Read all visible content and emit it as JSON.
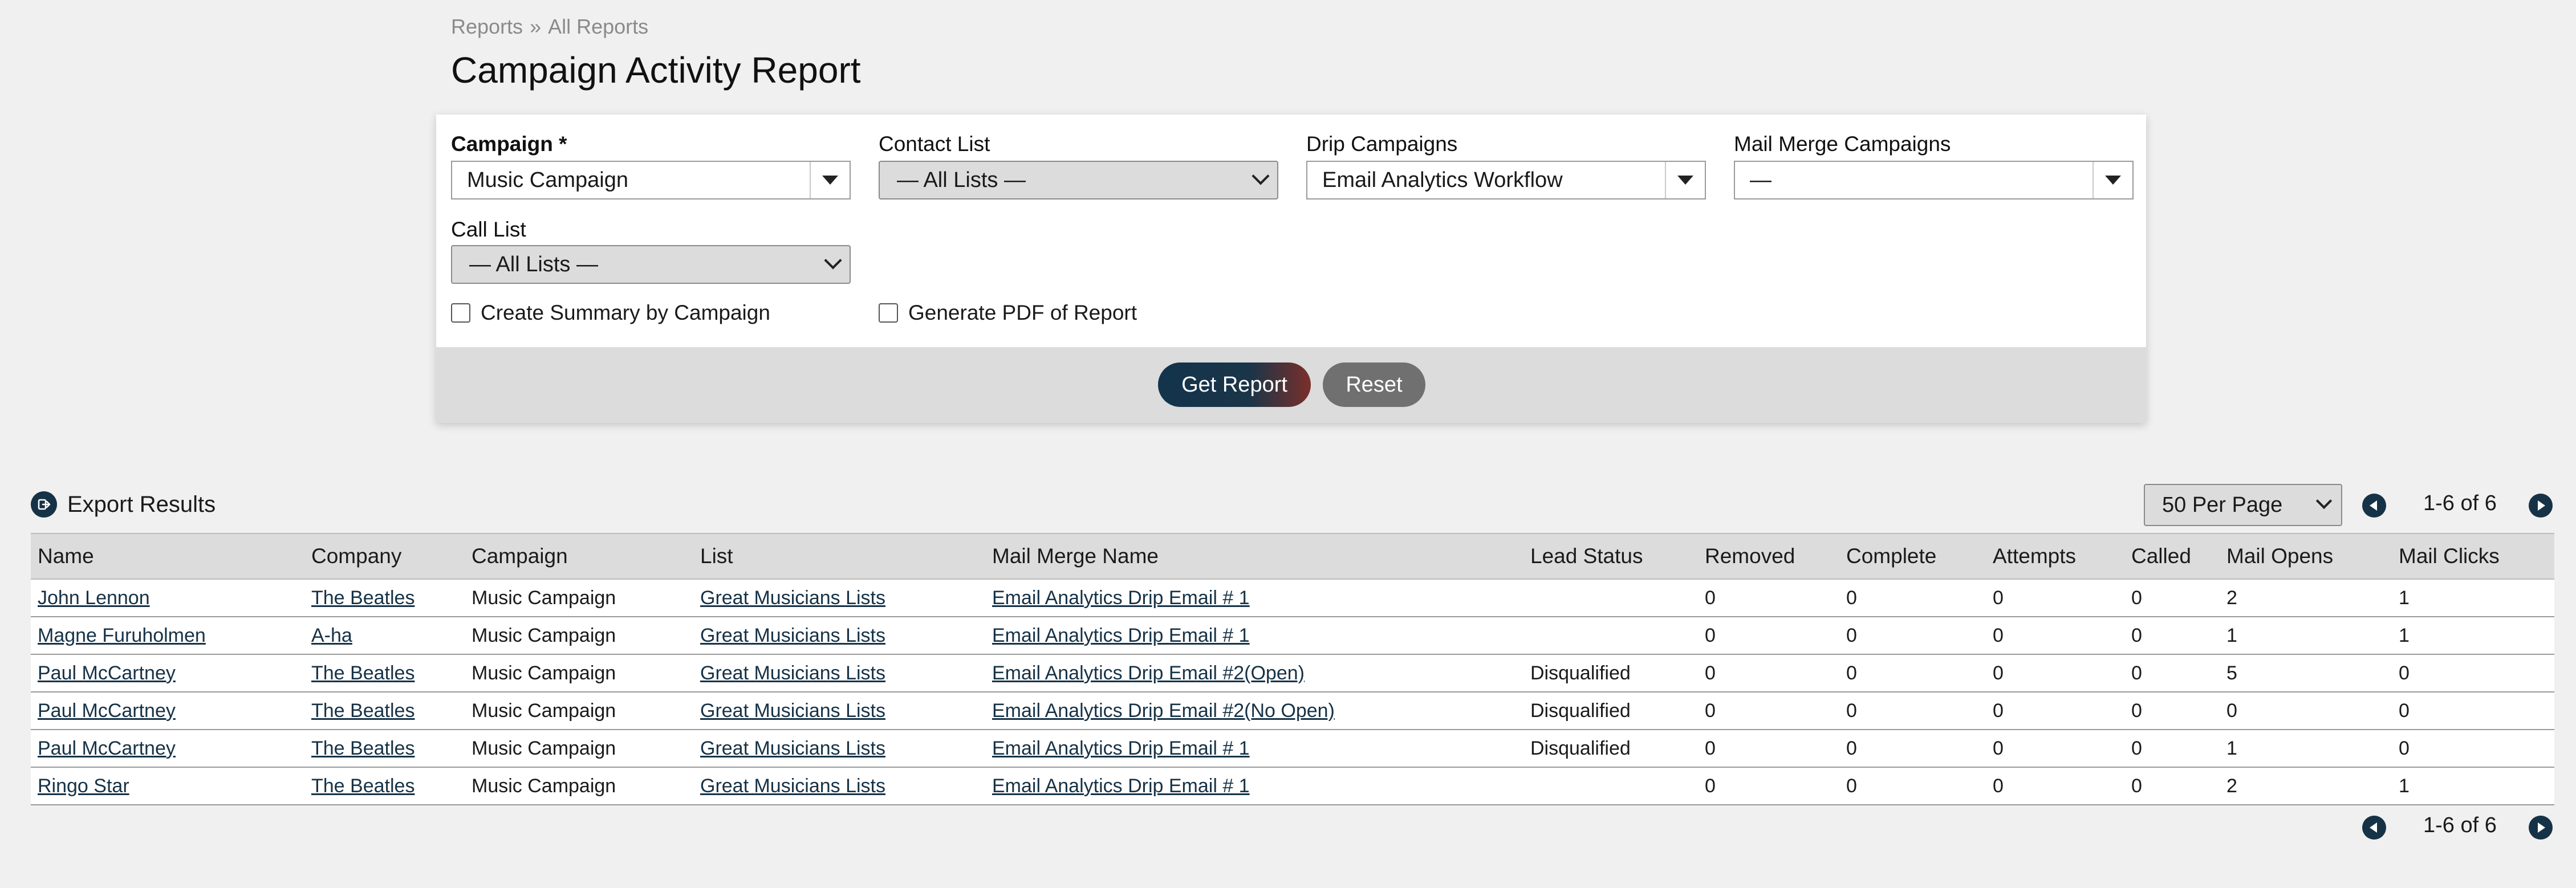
{
  "breadcrumb": {
    "root": "Reports",
    "separator": "»",
    "current": "All Reports"
  },
  "page_title": "Campaign Activity Report",
  "filters": {
    "campaign": {
      "label": "Campaign *",
      "value": "Music Campaign"
    },
    "contact_list": {
      "label": "Contact List",
      "value": "— All Lists —"
    },
    "drip_campaigns": {
      "label": "Drip Campaigns",
      "value": "Email Analytics Workflow"
    },
    "mail_merge": {
      "label": "Mail Merge Campaigns",
      "value": "—"
    },
    "call_list": {
      "label": "Call List",
      "value": "— All Lists —"
    },
    "summary_checkbox": {
      "label": "Create Summary by Campaign",
      "checked": false
    },
    "pdf_checkbox": {
      "label": "Generate PDF of Report",
      "checked": false
    }
  },
  "buttons": {
    "get_report": "Get Report",
    "reset": "Reset"
  },
  "export_label": "Export Results",
  "per_page": "50 Per Page",
  "pagination": {
    "top": "1-6 of 6",
    "bottom": "1-6 of 6"
  },
  "table": {
    "headers": [
      "Name",
      "Company",
      "Campaign",
      "List",
      "Mail Merge Name",
      "Lead Status",
      "Removed",
      "Complete",
      "Attempts",
      "Called",
      "Mail Opens",
      "Mail Clicks"
    ],
    "rows": [
      [
        "John Lennon",
        "The Beatles",
        "Music Campaign",
        "Great Musicians Lists",
        "Email Analytics Drip Email # 1",
        "",
        "0",
        "0",
        "0",
        "0",
        "2",
        "1"
      ],
      [
        "Magne Furuholmen",
        "A-ha",
        "Music Campaign",
        "Great Musicians Lists",
        "Email Analytics Drip Email # 1",
        "",
        "0",
        "0",
        "0",
        "0",
        "1",
        "1"
      ],
      [
        "Paul McCartney",
        "The Beatles",
        "Music Campaign",
        "Great Musicians Lists",
        "Email Analytics Drip Email #2(Open)",
        "Disqualified",
        "0",
        "0",
        "0",
        "0",
        "5",
        "0"
      ],
      [
        "Paul McCartney",
        "The Beatles",
        "Music Campaign",
        "Great Musicians Lists",
        "Email Analytics Drip Email #2(No Open)",
        "Disqualified",
        "0",
        "0",
        "0",
        "0",
        "0",
        "0"
      ],
      [
        "Paul McCartney",
        "The Beatles",
        "Music Campaign",
        "Great Musicians Lists",
        "Email Analytics Drip Email # 1",
        "Disqualified",
        "0",
        "0",
        "0",
        "0",
        "1",
        "0"
      ],
      [
        "Ringo Star",
        "The Beatles",
        "Music Campaign",
        "Great Musicians Lists",
        "Email Analytics Drip Email # 1",
        "",
        "0",
        "0",
        "0",
        "0",
        "2",
        "1"
      ]
    ]
  },
  "colors": {
    "accent_dark": "#163246",
    "accent_red": "#7a2f2a",
    "background": "#f0f0f0"
  }
}
